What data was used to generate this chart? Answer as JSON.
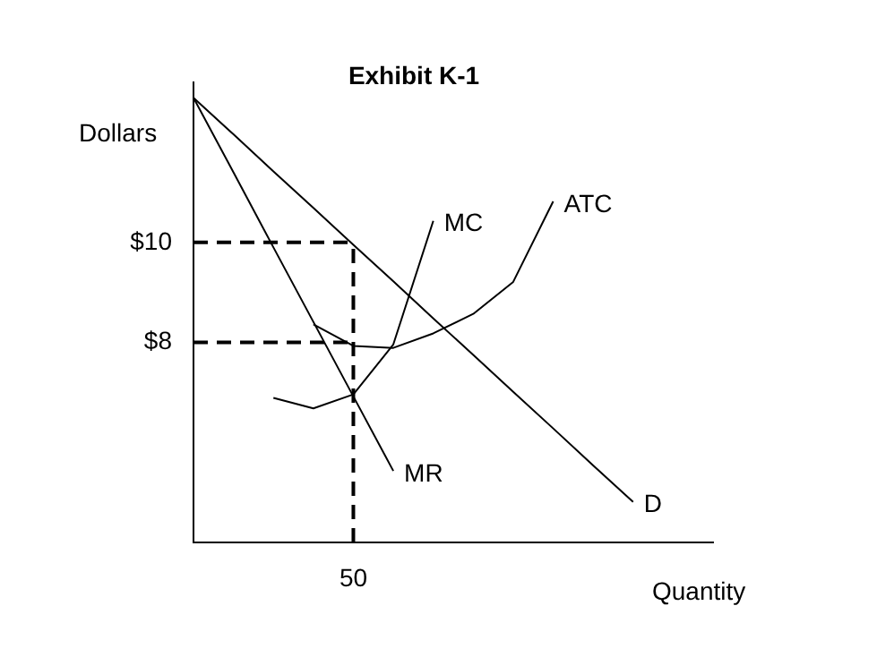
{
  "chart_data": {
    "type": "line",
    "title": "Exhibit K-1",
    "xlabel": "Quantity",
    "ylabel": "Dollars",
    "categories": [
      null,
      null,
      null,
      null,
      "50",
      null,
      null,
      null,
      null,
      null,
      null,
      null,
      null,
      null
    ],
    "ylim": [
      4,
      13.2
    ],
    "yticks": [
      {
        "value": 8,
        "label": "$8"
      },
      {
        "value": 10,
        "label": "$10"
      }
    ],
    "grid": false,
    "legend": false,
    "marker": "none",
    "ref_lines": [
      {
        "axis": "x",
        "value": "50",
        "line_style": "dashed",
        "color": "#000000"
      }
    ],
    "series": [
      {
        "name": "D",
        "color": "#000000",
        "values": [
          12.89,
          12.16,
          11.42,
          10.69,
          9.95,
          9.22,
          8.48,
          7.75,
          7.01,
          6.28,
          5.54,
          4.81,
          null,
          null
        ]
      },
      {
        "name": "MR",
        "color": "#000000",
        "values": [
          12.89,
          11.4,
          9.9,
          8.41,
          6.92,
          5.43,
          null,
          null,
          null,
          null,
          null,
          null,
          null,
          null
        ]
      },
      {
        "name": "MC",
        "color": "#000000",
        "values": [
          null,
          null,
          6.89,
          6.68,
          6.96,
          7.96,
          10.43,
          null,
          null,
          null,
          null,
          null,
          null,
          null
        ]
      },
      {
        "name": "ATC",
        "color": "#000000",
        "values": [
          null,
          null,
          null,
          8.36,
          7.93,
          7.89,
          8.18,
          8.57,
          9.21,
          10.82,
          null,
          null,
          null,
          null
        ]
      },
      {
        "color": "#000000",
        "line_style": "dashed",
        "values": [
          10,
          10,
          10,
          10,
          10,
          null,
          null,
          null,
          null,
          null,
          null,
          null,
          null,
          null
        ]
      },
      {
        "color": "#000000",
        "line_style": "dashed",
        "values": [
          8,
          8,
          8,
          8,
          8,
          null,
          null,
          null,
          null,
          null,
          null,
          null,
          null,
          null
        ]
      }
    ]
  }
}
